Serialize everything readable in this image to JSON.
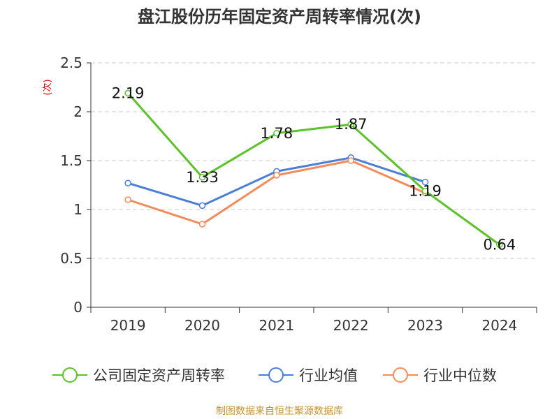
{
  "chart_data": {
    "type": "line",
    "title": "盘江股份历年固定资产周转率情况(次)",
    "ylabel": "(次)",
    "xlabel": "",
    "categories": [
      "2019",
      "2020",
      "2021",
      "2022",
      "2023",
      "2024"
    ],
    "ylim": [
      0,
      2.5
    ],
    "yticks": [
      "0",
      "0.5",
      "1",
      "1.5",
      "2",
      "2.5"
    ],
    "grid": true,
    "legend_position": "bottom",
    "series": [
      {
        "name": "公司固定资产周转率",
        "color": "#5cc12a",
        "values": [
          2.19,
          1.33,
          1.78,
          1.87,
          1.19,
          0.64
        ],
        "labels": [
          "2.19",
          "1.33",
          "1.78",
          "1.87",
          "1.19",
          "0.64"
        ]
      },
      {
        "name": "行业均值",
        "color": "#4a7fd8",
        "values": [
          1.27,
          1.04,
          1.39,
          1.53,
          1.28,
          null
        ]
      },
      {
        "name": "行业中位数",
        "color": "#f58b5a",
        "values": [
          1.1,
          0.85,
          1.35,
          1.5,
          1.17,
          null
        ]
      }
    ]
  },
  "source": "制图数据来自恒生聚源数据库"
}
